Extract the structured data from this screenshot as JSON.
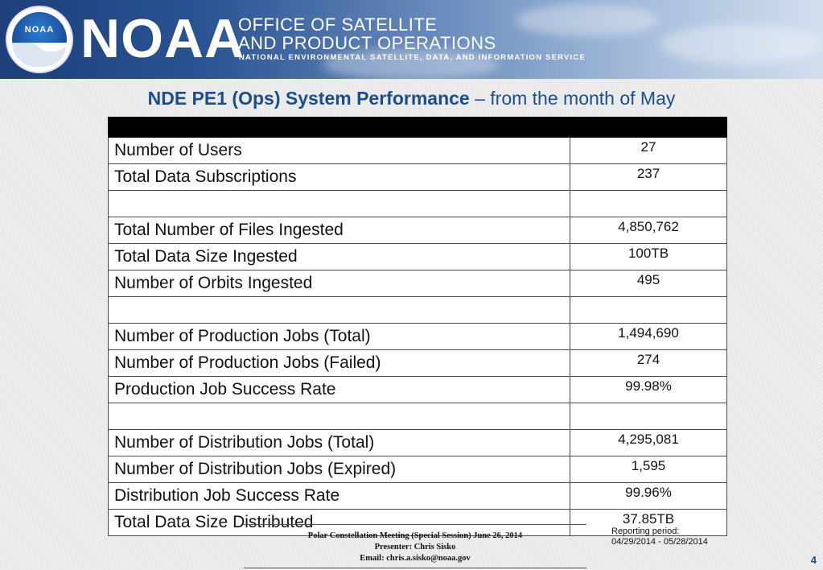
{
  "header": {
    "logo_text": "NOAA",
    "brand": "NOAA",
    "office_line1": "OFFICE OF SATELLITE",
    "office_line2": "AND PRODUCT OPERATIONS",
    "subtitle": "NATIONAL ENVIRONMENTAL SATELLITE, DATA, AND INFORMATION SERVICE"
  },
  "title": {
    "bold": "NDE PE1 (Ops) System Performance",
    "rest": " – from the month of May"
  },
  "table": {
    "rows": [
      {
        "label": "Number of Users",
        "value": "27"
      },
      {
        "label": "Total Data Subscriptions",
        "value": "237"
      },
      {
        "label": "",
        "value": ""
      },
      {
        "label": "Total Number of Files Ingested",
        "value": "4,850,762"
      },
      {
        "label": "Total Data Size Ingested",
        "value": "100TB"
      },
      {
        "label": "Number of Orbits Ingested",
        "value": "495"
      },
      {
        "label": "",
        "value": ""
      },
      {
        "label": "Number of Production Jobs (Total)",
        "value": "1,494,690"
      },
      {
        "label": "Number of Production Jobs (Failed)",
        "value": "274"
      },
      {
        "label": "Production Job Success Rate",
        "value": "99.98%"
      },
      {
        "label": "",
        "value": ""
      },
      {
        "label": "Number of Distribution Jobs (Total)",
        "value": "4,295,081"
      },
      {
        "label": "Number of Distribution Jobs (Expired)",
        "value": "1,595"
      },
      {
        "label": "Distribution Job Success Rate",
        "value": "99.96%"
      },
      {
        "label": "Total Data Size Distributed",
        "value": "37.85TB"
      }
    ]
  },
  "footer": {
    "meeting": "Polar Constellation Meeting (Special Session)  June 26, 2014",
    "presenter": "Presenter: Chris Sisko",
    "email": "Email: chris.a.sisko@noaa.gov",
    "reporting_label": "Reporting period:",
    "reporting_range": "04/29/2014 - 05/28/2014",
    "page_number": "4"
  }
}
